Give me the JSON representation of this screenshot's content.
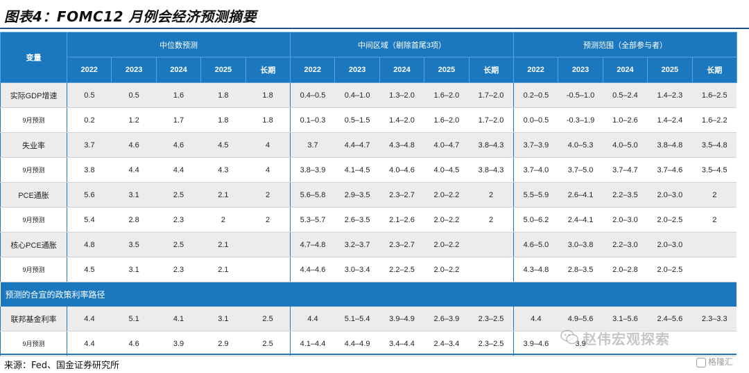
{
  "title": "图表4：FOMC12 月例会经济预测摘要",
  "header": {
    "variable_label": "变量",
    "groups": [
      "中位数预测",
      "中间区域（剔除首尾3项）",
      "预测范围（全部参与者）"
    ],
    "years": [
      "2022",
      "2023",
      "2024",
      "2025",
      "长期"
    ]
  },
  "rows": [
    {
      "label": "实际GDP增速",
      "kind": "main",
      "values": [
        "0.5",
        "0.5",
        "1.6",
        "1.8",
        "1.8",
        "0.4–0.5",
        "0.4–1.0",
        "1.3–2.0",
        "1.6–2.0",
        "1.7–2.0",
        "0.2–0.5",
        "-0.5–1.0",
        "0.5–2.4",
        "1.4–2.3",
        "1.6–2.5"
      ]
    },
    {
      "label": "9月预测",
      "kind": "sub",
      "values": [
        "0.2",
        "1.2",
        "1.7",
        "1.8",
        "1.8",
        "0.1–0.3",
        "0.5–1.5",
        "1.4–2.0",
        "1.6–2.0",
        "1.7–2.0",
        "0.0–0.5",
        "-0.3–1.9",
        "1.0–2.6",
        "1.4–2.4",
        "1.6–2.2"
      ]
    },
    {
      "label": "失业率",
      "kind": "main",
      "values": [
        "3.7",
        "4.6",
        "4.6",
        "4.5",
        "4",
        "3.7",
        "4.4–4.7",
        "4.3–4.8",
        "4.0–4.7",
        "3.8–4.3",
        "3.7–3.9",
        "4.0–5.3",
        "4.0–5.0",
        "3.8–4.8",
        "3.5–4.8"
      ]
    },
    {
      "label": "9月预测",
      "kind": "sub",
      "values": [
        "3.8",
        "4.4",
        "4.4",
        "4.3",
        "4",
        "3.8–3.9",
        "4.1–4.5",
        "4.0–4.6",
        "4.0–4.5",
        "3.8–4.3",
        "3.7–4.0",
        "3.7–5.0",
        "3.7–4.7",
        "3.7–4.6",
        "3.5–4.5"
      ]
    },
    {
      "label": "PCE通胀",
      "kind": "main",
      "values": [
        "5.6",
        "3.1",
        "2.5",
        "2.1",
        "2",
        "5.6–5.8",
        "2.9–3.5",
        "2.3–2.7",
        "2.0–2.2",
        "2",
        "5.5–5.9",
        "2.6–4.1",
        "2.2–3.5",
        "2.0–3.0",
        "2"
      ]
    },
    {
      "label": "9月预测",
      "kind": "sub",
      "values": [
        "5.4",
        "2.8",
        "2.3",
        "2",
        "2",
        "5.3–5.7",
        "2.6–3.5",
        "2.1–2.6",
        "2.0–2.2",
        "2",
        "5.0–6.2",
        "2.4–4.1",
        "2.0–3.0",
        "2.0–2.5",
        "2"
      ]
    },
    {
      "label": "核心PCE通胀",
      "kind": "main",
      "values": [
        "4.8",
        "3.5",
        "2.5",
        "2.1",
        "",
        "4.7–4.8",
        "3.2–3.7",
        "2.3–2.7",
        "2.0–2.2",
        "",
        "4.6–5.0",
        "3.0–3.8",
        "2.2–3.0",
        "2.0–3.0",
        ""
      ]
    },
    {
      "label": "9月预测",
      "kind": "sub",
      "values": [
        "4.5",
        "3.1",
        "2.3",
        "2.1",
        "",
        "4.4–4.6",
        "3.0–3.4",
        "2.2–2.5",
        "2.0–2.2",
        "",
        "4.3–4.8",
        "2.8–3.5",
        "2.0–2.8",
        "2.0–2.5",
        ""
      ]
    }
  ],
  "section_label": "预测的合宜的政策利率路径",
  "rate_rows": [
    {
      "label": "联邦基金利率",
      "kind": "main",
      "values": [
        "4.4",
        "5.1",
        "4.1",
        "3.1",
        "2.5",
        "4.4",
        "5.1–5.4",
        "3.9–4.9",
        "2.6–3.9",
        "2.3–2.5",
        "4.4",
        "4.9–5.6",
        "3.1–5.6",
        "2.4–5.6",
        "2.3–3.3"
      ]
    },
    {
      "label": "9月预测",
      "kind": "sub",
      "values": [
        "4.4",
        "4.6",
        "3.9",
        "2.9",
        "2.5",
        "4.1–4.4",
        "4.4–4.9",
        "3.4–4.4",
        "2.4–3.4",
        "2.3–2.5",
        "3.9–4.6",
        "3.9",
        "",
        "",
        ""
      ]
    }
  ],
  "source": "来源：Fed、国金证券研究所",
  "watermark": "赵伟宏观探索",
  "logo_text": "格隆汇"
}
